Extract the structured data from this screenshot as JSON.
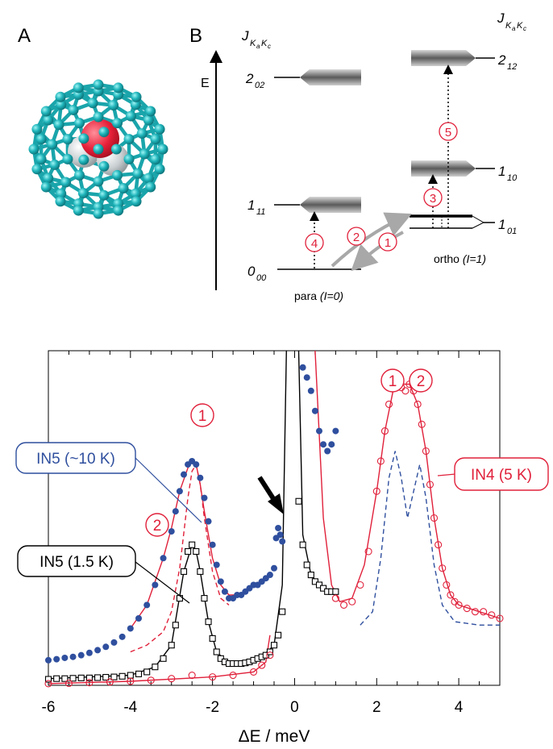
{
  "panels": {
    "a": "A",
    "b": "B"
  },
  "energy_diagram": {
    "axis_label": "E",
    "j_header": {
      "main": "J",
      "sub1": "K",
      "sub1sub": "a",
      "sub2": "K",
      "sub2sub": "c"
    },
    "levels": [
      {
        "id": "000",
        "main": "0",
        "sub": "00"
      },
      {
        "id": "111",
        "main": "1",
        "sub": "11"
      },
      {
        "id": "202",
        "main": "2",
        "sub": "02"
      },
      {
        "id": "101",
        "main": "1",
        "sub": "01"
      },
      {
        "id": "110",
        "main": "1",
        "sub": "10"
      },
      {
        "id": "212",
        "main": "2",
        "sub": "12"
      }
    ],
    "para_label": {
      "text": "para ",
      "italic": "(I=0)"
    },
    "ortho_label": {
      "text": "ortho ",
      "italic": "(I=1)"
    },
    "transition_numbers": [
      "1",
      "2",
      "3",
      "4",
      "5"
    ]
  },
  "chart_data": {
    "type": "scatter",
    "xlabel": "ΔE / meV",
    "xlim": [
      -6,
      5
    ],
    "ylim": [
      0,
      1
    ],
    "xticks": [
      -6,
      -4,
      -2,
      0,
      2,
      4
    ],
    "xtick_labels": [
      "-6",
      "-4",
      "-2",
      "0",
      "2",
      "4"
    ],
    "series": [
      {
        "name": "IN5 (~10 K)",
        "color": "#2f4f9e",
        "marker": "filled-circle",
        "x": [
          -6,
          -5.8,
          -5.6,
          -5.4,
          -5.2,
          -5,
          -4.8,
          -4.6,
          -4.4,
          -4.2,
          -4,
          -3.8,
          -3.6,
          -3.4,
          -3.2,
          -3,
          -2.9,
          -2.8,
          -2.7,
          -2.6,
          -2.5,
          -2.4,
          -2.3,
          -2.2,
          -2.1,
          -2,
          -1.9,
          -1.8,
          -1.7,
          -1.6,
          -1.5,
          -1.4,
          -1.3,
          -1.2,
          -1.1,
          -1,
          -0.9,
          -0.8,
          -0.7,
          -0.6,
          -0.5,
          -0.45,
          -0.4,
          -0.35,
          -0.3,
          0.2,
          0.3,
          0.4,
          0.5,
          0.6,
          0.7,
          0.8,
          0.9,
          1.0
        ],
        "y": [
          0.075,
          0.078,
          0.082,
          0.085,
          0.09,
          0.097,
          0.105,
          0.115,
          0.128,
          0.145,
          0.17,
          0.2,
          0.24,
          0.3,
          0.38,
          0.46,
          0.52,
          0.58,
          0.63,
          0.66,
          0.67,
          0.66,
          0.62,
          0.56,
          0.49,
          0.42,
          0.36,
          0.31,
          0.28,
          0.26,
          0.26,
          0.27,
          0.27,
          0.28,
          0.29,
          0.3,
          0.3,
          0.31,
          0.32,
          0.33,
          0.35,
          0.44,
          0.47,
          0.45,
          0.43,
          0.95,
          0.92,
          0.88,
          0.82,
          0.76,
          0.72,
          0.7,
          0.72,
          0.76
        ]
      },
      {
        "name": "IN5 (1.5 K)",
        "color": "#000000",
        "marker": "open-square",
        "x": [
          -6,
          -5.8,
          -5.6,
          -5.4,
          -5.2,
          -5,
          -4.8,
          -4.6,
          -4.4,
          -4.2,
          -4,
          -3.8,
          -3.6,
          -3.4,
          -3.2,
          -3,
          -2.9,
          -2.8,
          -2.7,
          -2.6,
          -2.5,
          -2.4,
          -2.3,
          -2.2,
          -2.1,
          -2,
          -1.9,
          -1.8,
          -1.7,
          -1.6,
          -1.5,
          -1.4,
          -1.3,
          -1.2,
          -1.1,
          -1,
          -0.9,
          -0.8,
          -0.7,
          -0.6,
          -0.5,
          -0.4,
          -0.3,
          0.1,
          0.2,
          0.3,
          0.4,
          0.5,
          0.6,
          0.7,
          0.8,
          0.9,
          1.0
        ],
        "y": [
          0.018,
          0.02,
          0.02,
          0.021,
          0.022,
          0.022,
          0.023,
          0.024,
          0.025,
          0.027,
          0.03,
          0.034,
          0.04,
          0.055,
          0.08,
          0.12,
          0.18,
          0.26,
          0.34,
          0.4,
          0.42,
          0.4,
          0.34,
          0.26,
          0.19,
          0.14,
          0.1,
          0.08,
          0.07,
          0.065,
          0.065,
          0.065,
          0.065,
          0.067,
          0.07,
          0.075,
          0.08,
          0.085,
          0.09,
          0.1,
          0.12,
          0.15,
          0.22,
          0.55,
          0.42,
          0.36,
          0.33,
          0.31,
          0.3,
          0.29,
          0.28,
          0.28,
          0.28
        ]
      },
      {
        "name": "IN4 (5 K)",
        "color": "#e0203a",
        "marker": "open-circle",
        "x": [
          -6,
          -5.5,
          -5,
          -4.5,
          -4,
          -3.5,
          -3,
          -2.5,
          -2,
          -1.5,
          -1,
          -0.8,
          -0.6,
          1.0,
          1.2,
          1.4,
          1.6,
          1.8,
          2.0,
          2.1,
          2.2,
          2.3,
          2.4,
          2.5,
          2.6,
          2.7,
          2.8,
          2.9,
          3.0,
          3.1,
          3.2,
          3.3,
          3.4,
          3.5,
          3.6,
          3.7,
          3.8,
          3.9,
          4.0,
          4.2,
          4.4,
          4.6,
          4.8,
          5.0
        ],
        "y": [
          0.005,
          0.006,
          0.008,
          0.01,
          0.012,
          0.015,
          0.02,
          0.03,
          0.025,
          0.03,
          0.04,
          0.06,
          0.09,
          0.26,
          0.24,
          0.25,
          0.3,
          0.4,
          0.58,
          0.67,
          0.76,
          0.84,
          0.89,
          0.9,
          0.89,
          0.88,
          0.9,
          0.88,
          0.84,
          0.78,
          0.7,
          0.6,
          0.5,
          0.42,
          0.35,
          0.3,
          0.27,
          0.25,
          0.24,
          0.23,
          0.22,
          0.22,
          0.21,
          0.2
        ]
      }
    ],
    "fit_curves": [
      {
        "color": "#e0203a",
        "style": "solid",
        "x": [
          -4,
          -3.6,
          -3.2,
          -3,
          -2.8,
          -2.6,
          -2.5,
          -2.4,
          -2.3,
          -2.2,
          -2,
          -1.8,
          -1.6,
          -1.4
        ],
        "y": [
          0.17,
          0.24,
          0.38,
          0.47,
          0.58,
          0.65,
          0.67,
          0.66,
          0.6,
          0.52,
          0.38,
          0.3,
          0.27,
          0.27
        ]
      },
      {
        "color": "#e0203a",
        "style": "dashed",
        "x": [
          -4,
          -3.6,
          -3.2,
          -3,
          -2.8,
          -2.6,
          -2.5,
          -2.4,
          -2.3,
          -2.2,
          -2,
          -1.8,
          -1.6
        ],
        "y": [
          0.1,
          0.12,
          0.16,
          0.22,
          0.35,
          0.56,
          0.64,
          0.66,
          0.6,
          0.5,
          0.34,
          0.26,
          0.24
        ]
      },
      {
        "color": "#000000",
        "style": "solid",
        "x": [
          -6,
          -4,
          -3.4,
          -3,
          -2.7,
          -2.5,
          -2.4,
          -2.3,
          -2.1,
          -1.9,
          -1.6,
          -1.2,
          -0.8,
          -0.5,
          -0.3,
          -0.2
        ],
        "y": [
          0.02,
          0.03,
          0.055,
          0.12,
          0.34,
          0.42,
          0.4,
          0.34,
          0.19,
          0.1,
          0.065,
          0.067,
          0.085,
          0.12,
          0.3,
          1.0
        ]
      },
      {
        "color": "#000000",
        "style": "solid",
        "x": [
          0.1,
          0.2,
          0.4,
          0.6,
          0.8,
          1.0
        ],
        "y": [
          1.0,
          0.45,
          0.33,
          0.3,
          0.28,
          0.28
        ]
      },
      {
        "color": "#e0203a",
        "style": "solid",
        "x": [
          -6,
          -4,
          -2,
          -1,
          -0.7,
          -0.6
        ],
        "y": [
          0.005,
          0.012,
          0.025,
          0.04,
          0.07,
          0.15
        ]
      },
      {
        "color": "#e0203a",
        "style": "solid",
        "x": [
          0.5,
          0.7,
          0.9,
          1.1,
          1.4,
          1.7,
          2.0,
          2.2,
          2.4,
          2.6,
          2.8,
          3.0,
          3.2,
          3.4,
          3.6,
          3.8,
          4.0,
          4.5,
          5.0
        ],
        "y": [
          1.0,
          0.5,
          0.3,
          0.25,
          0.26,
          0.36,
          0.58,
          0.76,
          0.88,
          0.9,
          0.9,
          0.84,
          0.7,
          0.5,
          0.35,
          0.27,
          0.24,
          0.22,
          0.2
        ]
      },
      {
        "color": "#2f4f9e",
        "style": "dashed",
        "x": [
          1.6,
          1.9,
          2.1,
          2.3,
          2.45,
          2.6,
          2.75,
          2.9,
          3.05,
          3.2,
          3.4,
          3.6,
          3.9,
          4.5,
          5.0
        ],
        "y": [
          0.18,
          0.22,
          0.38,
          0.62,
          0.7,
          0.62,
          0.5,
          0.58,
          0.66,
          0.56,
          0.36,
          0.24,
          0.19,
          0.18,
          0.18
        ]
      }
    ],
    "annotations": [
      {
        "text": "1",
        "style": "red-circle"
      },
      {
        "text": "2",
        "style": "red-circle"
      },
      {
        "text": "1",
        "style": "red-circle"
      },
      {
        "text": "2",
        "style": "red-circle"
      }
    ],
    "callouts": [
      {
        "text": "IN5 (~10 K)",
        "color": "#2f4f9e"
      },
      {
        "text": "IN5 (1.5 K)",
        "color": "#000000"
      },
      {
        "text": "IN4 (5 K)",
        "color": "#e0203a"
      }
    ]
  }
}
